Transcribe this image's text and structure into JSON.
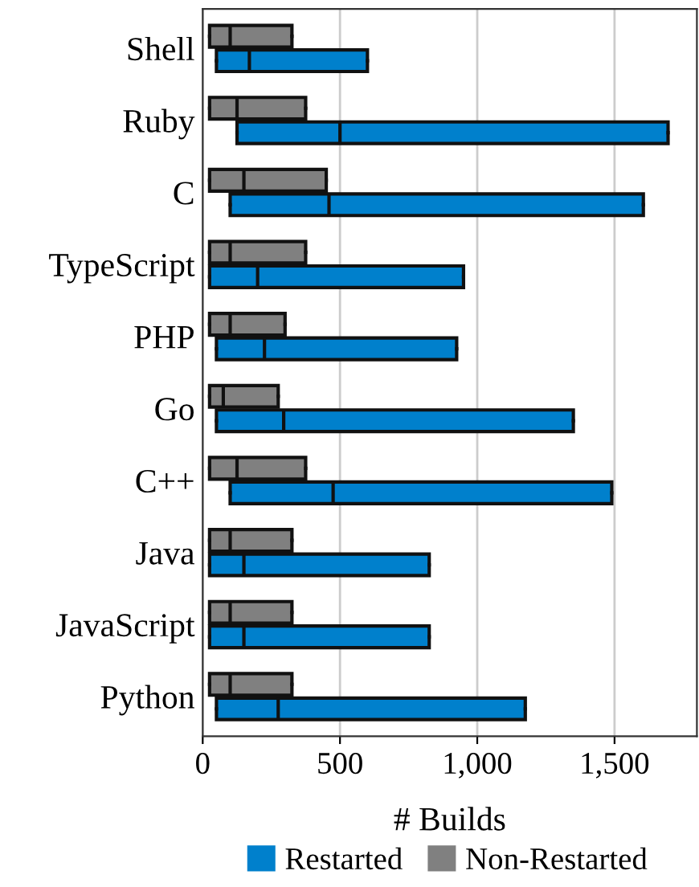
{
  "chart_data": {
    "type": "box",
    "orientation": "horizontal",
    "xlabel": "# Builds",
    "categories": [
      "Shell",
      "Ruby",
      "C",
      "TypeScript",
      "PHP",
      "Go",
      "C++",
      "Java",
      "JavaScript",
      "Python"
    ],
    "series": [
      {
        "name": "Restarted",
        "color": "#0080cc",
        "boxes": [
          {
            "low": 50,
            "q1": 50,
            "median": 170,
            "q3": 600,
            "high": 600
          },
          {
            "low": 125,
            "q1": 125,
            "median": 500,
            "q3": 1695,
            "high": 1695
          },
          {
            "low": 100,
            "q1": 100,
            "median": 460,
            "q3": 1605,
            "high": 1605
          },
          {
            "low": 25,
            "q1": 25,
            "median": 200,
            "q3": 950,
            "high": 950
          },
          {
            "low": 50,
            "q1": 50,
            "median": 225,
            "q3": 925,
            "high": 925
          },
          {
            "low": 50,
            "q1": 50,
            "median": 295,
            "q3": 1350,
            "high": 1350
          },
          {
            "low": 100,
            "q1": 100,
            "median": 475,
            "q3": 1490,
            "high": 1490
          },
          {
            "low": 25,
            "q1": 25,
            "median": 150,
            "q3": 825,
            "high": 825
          },
          {
            "low": 25,
            "q1": 25,
            "median": 150,
            "q3": 825,
            "high": 825
          },
          {
            "low": 50,
            "q1": 50,
            "median": 275,
            "q3": 1175,
            "high": 1175
          }
        ]
      },
      {
        "name": "Non-Restarted",
        "color": "#808080",
        "boxes": [
          {
            "low": 25,
            "q1": 25,
            "median": 100,
            "q3": 325,
            "high": 325
          },
          {
            "low": 25,
            "q1": 25,
            "median": 125,
            "q3": 375,
            "high": 375
          },
          {
            "low": 25,
            "q1": 25,
            "median": 150,
            "q3": 450,
            "high": 450
          },
          {
            "low": 25,
            "q1": 25,
            "median": 100,
            "q3": 375,
            "high": 375
          },
          {
            "low": 25,
            "q1": 25,
            "median": 100,
            "q3": 300,
            "high": 300
          },
          {
            "low": 25,
            "q1": 25,
            "median": 75,
            "q3": 275,
            "high": 275
          },
          {
            "low": 25,
            "q1": 25,
            "median": 125,
            "q3": 375,
            "high": 375
          },
          {
            "low": 25,
            "q1": 25,
            "median": 100,
            "q3": 325,
            "high": 325
          },
          {
            "low": 25,
            "q1": 25,
            "median": 100,
            "q3": 325,
            "high": 325
          },
          {
            "low": 25,
            "q1": 25,
            "median": 100,
            "q3": 325,
            "high": 325
          }
        ]
      }
    ],
    "xlim": [
      0,
      1800
    ],
    "xticks": [
      0,
      500,
      {
        "value": 1000,
        "label": "1,000"
      },
      {
        "value": 1500,
        "label": "1,500"
      }
    ],
    "grid": "x",
    "legend": "bottom"
  }
}
